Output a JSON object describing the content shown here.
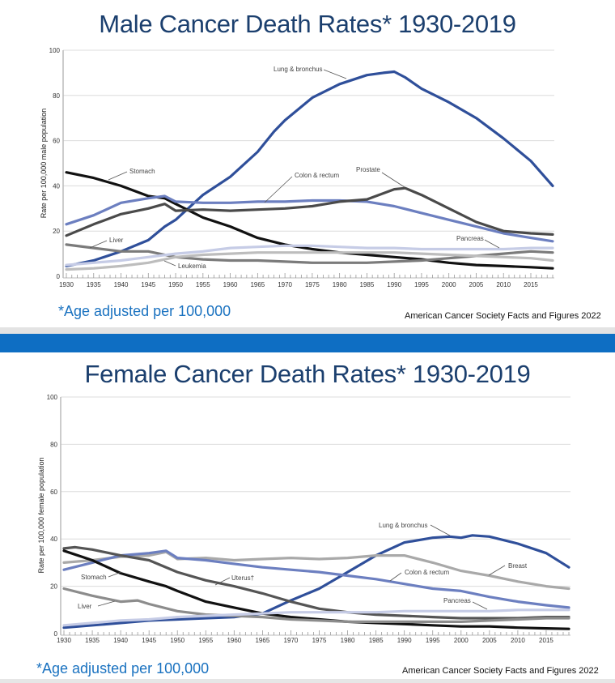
{
  "male": {
    "title": "Male Cancer Death Rates* 1930-2019",
    "footnote": "*Age adjusted per 100,000",
    "source": "American Cancer Society Facts and Figures 2022"
  },
  "female": {
    "title": "Female Cancer Death Rates* 1930-2019",
    "footnote": "*Age adjusted per 100,000",
    "source": "American Cancer Society Facts and Figures 2022"
  },
  "colors": {
    "title": "#1b3f6e",
    "footnote": "#1a72c0",
    "divider_blue": "#0e6ec3",
    "divider_gray": "#e3e3e3"
  },
  "chart_data": [
    {
      "id": "male",
      "type": "line",
      "title": "Male Cancer Death Rates* 1930-2019",
      "xlabel": "",
      "ylabel": "Rate per 100,000 male population",
      "xlim": [
        1930,
        2019
      ],
      "ylim": [
        0,
        100
      ],
      "yticks": [
        "0",
        "20",
        "40",
        "60",
        "80",
        "100"
      ],
      "xticks": [
        "1930",
        "1935",
        "1940",
        "1945",
        "1950",
        "1955",
        "1960",
        "1965",
        "1970",
        "1975",
        "1980",
        "1985",
        "1990",
        "1995",
        "2000",
        "2005",
        "2010",
        "2015"
      ],
      "grid": true,
      "series": [
        {
          "name": "Lung & bronchus",
          "color": "#2f4f9a",
          "label": "Lung & bronchus",
          "x": [
            1930,
            1935,
            1940,
            1945,
            1948,
            1950,
            1955,
            1960,
            1965,
            1968,
            1970,
            1975,
            1980,
            1985,
            1988,
            1990,
            1992,
            1995,
            2000,
            2005,
            2010,
            2015,
            2019
          ],
          "y": [
            4.5,
            7,
            11,
            16,
            22,
            25,
            36,
            44,
            55,
            64,
            69,
            79,
            85,
            89,
            90,
            90.5,
            88,
            83,
            77,
            70,
            61,
            51,
            40
          ]
        },
        {
          "name": "Stomach",
          "color": "#111111",
          "label": "Stomach",
          "x": [
            1930,
            1935,
            1940,
            1945,
            1948,
            1950,
            1955,
            1960,
            1965,
            1970,
            1975,
            1980,
            1985,
            1990,
            1995,
            2000,
            2005,
            2010,
            2015,
            2019
          ],
          "y": [
            46,
            43.5,
            40,
            35.5,
            34.5,
            32,
            26,
            22,
            17,
            14,
            12,
            10.5,
            9.5,
            8.5,
            7.5,
            6,
            5,
            4.5,
            4,
            3.5
          ]
        },
        {
          "name": "Colon & rectum",
          "color": "#6c7fc0",
          "label": "Colon & rectum",
          "x": [
            1930,
            1935,
            1940,
            1945,
            1948,
            1950,
            1955,
            1960,
            1965,
            1970,
            1975,
            1980,
            1985,
            1990,
            1995,
            2000,
            2005,
            2010,
            2015,
            2019
          ],
          "y": [
            23,
            27,
            32.5,
            34.5,
            35.5,
            33,
            32.5,
            32.5,
            33,
            33,
            33.5,
            33.5,
            33,
            31,
            28,
            25,
            22,
            19,
            17,
            15.5
          ]
        },
        {
          "name": "Prostate",
          "color": "#4a4a4a",
          "label": "Prostate",
          "x": [
            1930,
            1935,
            1940,
            1945,
            1948,
            1950,
            1955,
            1960,
            1965,
            1970,
            1975,
            1980,
            1985,
            1990,
            1992,
            1995,
            2000,
            2005,
            2010,
            2015,
            2019
          ],
          "y": [
            18,
            23,
            27.5,
            30,
            32,
            29,
            29.5,
            29,
            29.5,
            30,
            31,
            33,
            34,
            38.5,
            39,
            36,
            30,
            24,
            20,
            19,
            18.5
          ]
        },
        {
          "name": "Liver",
          "color": "#7b7b7b",
          "label": "Liver",
          "x": [
            1930,
            1935,
            1940,
            1945,
            1950,
            1955,
            1960,
            1965,
            1970,
            1975,
            1980,
            1985,
            1990,
            1995,
            2000,
            2005,
            2010,
            2015,
            2019
          ],
          "y": [
            14,
            12.5,
            11,
            11,
            8.5,
            7.5,
            7,
            7,
            6.5,
            6,
            6,
            6,
            6.5,
            7,
            8,
            9,
            10,
            11,
            10.5
          ]
        },
        {
          "name": "Pancreas",
          "color": "#c6cce6",
          "label": "Pancreas",
          "x": [
            1930,
            1935,
            1940,
            1945,
            1950,
            1955,
            1960,
            1965,
            1970,
            1975,
            1980,
            1985,
            1990,
            1995,
            2000,
            2005,
            2010,
            2015,
            2019
          ],
          "y": [
            5,
            6,
            7,
            8.5,
            10,
            11,
            12.5,
            13,
            13.5,
            13.5,
            13,
            12.5,
            12.5,
            12,
            12,
            12,
            12,
            12.5,
            12.5
          ]
        },
        {
          "name": "Leukemia",
          "color": "#bdbdbd",
          "label": "Leukemia",
          "x": [
            1930,
            1935,
            1940,
            1945,
            1950,
            1955,
            1960,
            1965,
            1970,
            1975,
            1980,
            1985,
            1990,
            1995,
            2000,
            2005,
            2010,
            2015,
            2019
          ],
          "y": [
            3,
            3.5,
            4.5,
            6,
            8.5,
            9.5,
            10,
            10.5,
            10.5,
            10.5,
            10.5,
            10.5,
            10.5,
            10,
            9.5,
            9,
            8.5,
            8,
            7
          ]
        }
      ],
      "annotations": [
        {
          "text": "Lung & bronchus",
          "series": "Lung & bronchus"
        },
        {
          "text": "Stomach",
          "series": "Stomach"
        },
        {
          "text": "Colon & rectum",
          "series": "Colon & rectum"
        },
        {
          "text": "Prostate",
          "series": "Prostate"
        },
        {
          "text": "Liver",
          "series": "Liver"
        },
        {
          "text": "Leukemia",
          "series": "Leukemia"
        },
        {
          "text": "Pancreas",
          "series": "Pancreas"
        }
      ]
    },
    {
      "id": "female",
      "type": "line",
      "title": "Female Cancer Death Rates* 1930-2019",
      "xlabel": "",
      "ylabel": "Rate per 100,000 female population",
      "xlim": [
        1930,
        2019
      ],
      "ylim": [
        0,
        100
      ],
      "yticks": [
        "0",
        "20",
        "40",
        "60",
        "80",
        "100"
      ],
      "xticks": [
        "1930",
        "1935",
        "1940",
        "1945",
        "1950",
        "1955",
        "1960",
        "1965",
        "1970",
        "1975",
        "1980",
        "1985",
        "1990",
        "1995",
        "2000",
        "2005",
        "2010",
        "2015"
      ],
      "grid": true,
      "series": [
        {
          "name": "Lung & bronchus",
          "color": "#2f4f9a",
          "label": "Lung & bronchus",
          "x": [
            1930,
            1935,
            1940,
            1945,
            1950,
            1955,
            1960,
            1965,
            1970,
            1975,
            1980,
            1985,
            1990,
            1995,
            1998,
            2000,
            2002,
            2005,
            2010,
            2015,
            2019
          ],
          "y": [
            2.5,
            3.5,
            4.5,
            5.5,
            6,
            6.5,
            7,
            8.5,
            14,
            19,
            26,
            33,
            38.5,
            40.5,
            41,
            40.5,
            41.5,
            41,
            38,
            34,
            28
          ]
        },
        {
          "name": "Breast",
          "color": "#a9a9a9",
          "label": "Breast",
          "x": [
            1930,
            1935,
            1940,
            1945,
            1948,
            1950,
            1955,
            1960,
            1965,
            1970,
            1975,
            1980,
            1985,
            1990,
            1995,
            2000,
            2005,
            2010,
            2015,
            2019
          ],
          "y": [
            30,
            31,
            32.5,
            33,
            34.5,
            31.5,
            32,
            31,
            31.5,
            32,
            31.5,
            32,
            33,
            33,
            30,
            26.5,
            24.5,
            22,
            20,
            19
          ]
        },
        {
          "name": "Colon & rectum",
          "color": "#6c7fc0",
          "label": "Colon & rectum",
          "x": [
            1930,
            1935,
            1940,
            1945,
            1948,
            1950,
            1955,
            1960,
            1965,
            1970,
            1975,
            1980,
            1985,
            1990,
            1995,
            2000,
            2005,
            2010,
            2015,
            2019
          ],
          "y": [
            27,
            30,
            33,
            34,
            35,
            32,
            31,
            29.5,
            28,
            27,
            26,
            24.5,
            23,
            21,
            19,
            18,
            15.5,
            13.5,
            12,
            11
          ]
        },
        {
          "name": "Uterus",
          "color": "#555555",
          "label": "Uterus†",
          "x": [
            1930,
            1932,
            1935,
            1940,
            1945,
            1950,
            1955,
            1960,
            1965,
            1970,
            1975,
            1980,
            1985,
            1990,
            1995,
            2000,
            2005,
            2010,
            2015,
            2019
          ],
          "y": [
            36,
            36.5,
            35.5,
            33,
            31,
            26,
            22.5,
            20,
            17,
            13.5,
            10.5,
            9,
            8,
            7.5,
            7,
            6.5,
            6.5,
            6.5,
            7,
            7
          ]
        },
        {
          "name": "Stomach",
          "color": "#111111",
          "label": "Stomach",
          "x": [
            1930,
            1935,
            1940,
            1945,
            1948,
            1950,
            1955,
            1960,
            1965,
            1970,
            1975,
            1980,
            1985,
            1990,
            1995,
            2000,
            2005,
            2010,
            2015,
            2019
          ],
          "y": [
            35,
            31,
            25.5,
            22,
            20,
            18,
            13.5,
            11,
            8.5,
            7,
            6,
            5,
            4.5,
            4,
            3.5,
            3,
            3,
            2.5,
            2.2,
            2
          ]
        },
        {
          "name": "Liver",
          "color": "#8c8c8c",
          "label": "Liver",
          "x": [
            1930,
            1935,
            1940,
            1943,
            1945,
            1950,
            1955,
            1960,
            1965,
            1970,
            1975,
            1980,
            1985,
            1990,
            1995,
            2000,
            2005,
            2010,
            2015,
            2019
          ],
          "y": [
            19,
            16,
            13.5,
            14,
            12.5,
            9.5,
            8,
            7.5,
            7,
            6,
            5.5,
            5,
            5,
            5,
            5,
            5,
            5.5,
            6,
            6.5,
            6.5
          ]
        },
        {
          "name": "Pancreas",
          "color": "#c6cce6",
          "label": "Pancreas",
          "x": [
            1930,
            1935,
            1940,
            1945,
            1950,
            1955,
            1960,
            1965,
            1970,
            1975,
            1980,
            1985,
            1990,
            1995,
            2000,
            2005,
            2010,
            2015,
            2019
          ],
          "y": [
            3.5,
            4.5,
            5.5,
            6,
            7,
            7.5,
            8,
            8.5,
            9,
            9,
            9,
            9,
            9.5,
            9.5,
            9.5,
            9.5,
            10,
            10,
            10
          ]
        }
      ],
      "annotations": [
        {
          "text": "Lung & bronchus",
          "series": "Lung & bronchus"
        },
        {
          "text": "Breast",
          "series": "Breast"
        },
        {
          "text": "Colon & rectum",
          "series": "Colon & rectum"
        },
        {
          "text": "Uterus†",
          "series": "Uterus"
        },
        {
          "text": "Stomach",
          "series": "Stomach"
        },
        {
          "text": "Liver",
          "series": "Liver"
        },
        {
          "text": "Pancreas",
          "series": "Pancreas"
        }
      ]
    }
  ]
}
